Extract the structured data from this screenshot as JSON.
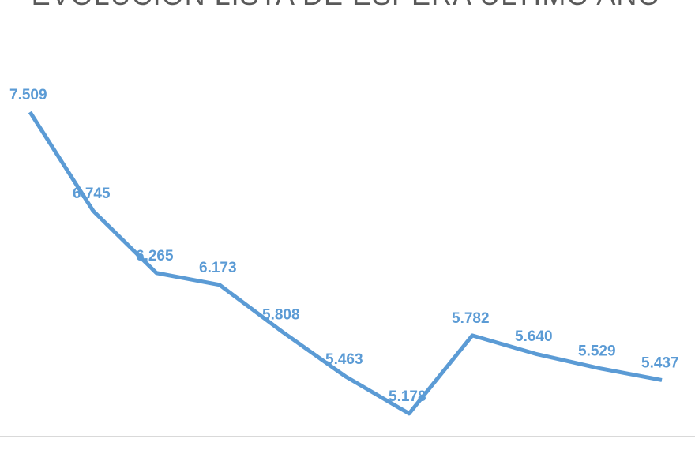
{
  "chart_data": {
    "type": "line",
    "title": "EVOLUCIÓN LISTA DE ESPERA ÚLTIMO AÑO",
    "categories": [
      null,
      null,
      null,
      null,
      null,
      null,
      null,
      null,
      null,
      null,
      null
    ],
    "values": [
      7509,
      6745,
      6265,
      6173,
      5808,
      5463,
      5178,
      5782,
      5640,
      5529,
      5437
    ],
    "value_labels": [
      "7.509",
      "6.745",
      "6.265",
      "6.173",
      "5.808",
      "5.463",
      "5.178",
      "5.782",
      "5.640",
      "5.529",
      "5.437"
    ],
    "color": "#5b9bd5",
    "ylim": [
      5000,
      8400
    ]
  }
}
